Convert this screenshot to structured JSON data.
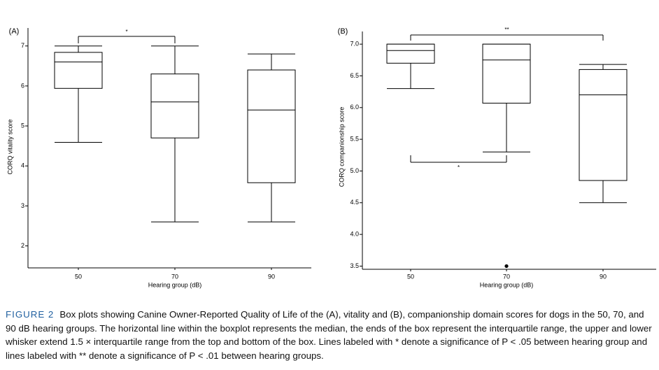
{
  "chart_data": [
    {
      "type": "box",
      "panel": "(A)",
      "y_label": "CORQ vitality score",
      "x_label": "Hearing group (dB)",
      "categories": [
        "50",
        "70",
        "90"
      ],
      "boxes": [
        {
          "whisker_low": 4.59,
          "q1": 5.94,
          "median": 6.6,
          "q3": 6.84,
          "whisker_high": 7.0,
          "outliers": []
        },
        {
          "whisker_low": 2.6,
          "q1": 4.7,
          "median": 5.6,
          "q3": 6.3,
          "whisker_high": 7.0,
          "outliers": []
        },
        {
          "whisker_low": 2.6,
          "q1": 3.58,
          "median": 5.4,
          "q3": 6.4,
          "whisker_high": 6.8,
          "outliers": []
        }
      ],
      "ylim": [
        1.45,
        7.45
      ],
      "yticks": [
        2,
        3,
        4,
        5,
        6,
        7
      ],
      "annotations": [
        "*"
      ]
    },
    {
      "type": "box",
      "panel": "(B)",
      "y_label": "CORQ companionship score",
      "x_label": "Hearing group (dB)",
      "categories": [
        "50",
        "70",
        "90"
      ],
      "boxes": [
        {
          "whisker_low": 6.3,
          "q1": 6.7,
          "median": 6.9,
          "q3": 7.0,
          "whisker_high": 7.0,
          "outliers": []
        },
        {
          "whisker_low": 5.3,
          "q1": 6.07,
          "median": 6.75,
          "q3": 7.0,
          "whisker_high": 7.0,
          "outliers": [
            3.5
          ]
        },
        {
          "whisker_low": 4.5,
          "q1": 4.85,
          "median": 6.2,
          "q3": 6.6,
          "whisker_high": 6.68,
          "outliers": []
        }
      ],
      "ylim": [
        3.45,
        7.2
      ],
      "yticks": [
        3.5,
        {
          "value": 4,
          "label": "4.0"
        },
        4.5,
        {
          "value": 5,
          "label": "5.0"
        },
        5.5,
        {
          "value": 6,
          "label": "6.0"
        },
        6.5,
        {
          "value": 7,
          "label": "7.0"
        }
      ],
      "annotations": [
        "**",
        "*"
      ]
    }
  ],
  "caption": {
    "label": "FIGURE 2",
    "text": "Box plots showing Canine Owner-Reported Quality of Life of the (A), vitality and (B), companionship domain scores for dogs in the 50, 70, and 90 dB hearing groups. The horizontal line within the boxplot represents the median, the ends of the box represent the interquartile range, the upper and lower whisker extend 1.5 × interquartile range from the top and bottom of the box. Lines labeled with * denote a significance of P < .05 between hearing group and lines labeled with ** denote a significance of P < .01 between hearing groups."
  }
}
